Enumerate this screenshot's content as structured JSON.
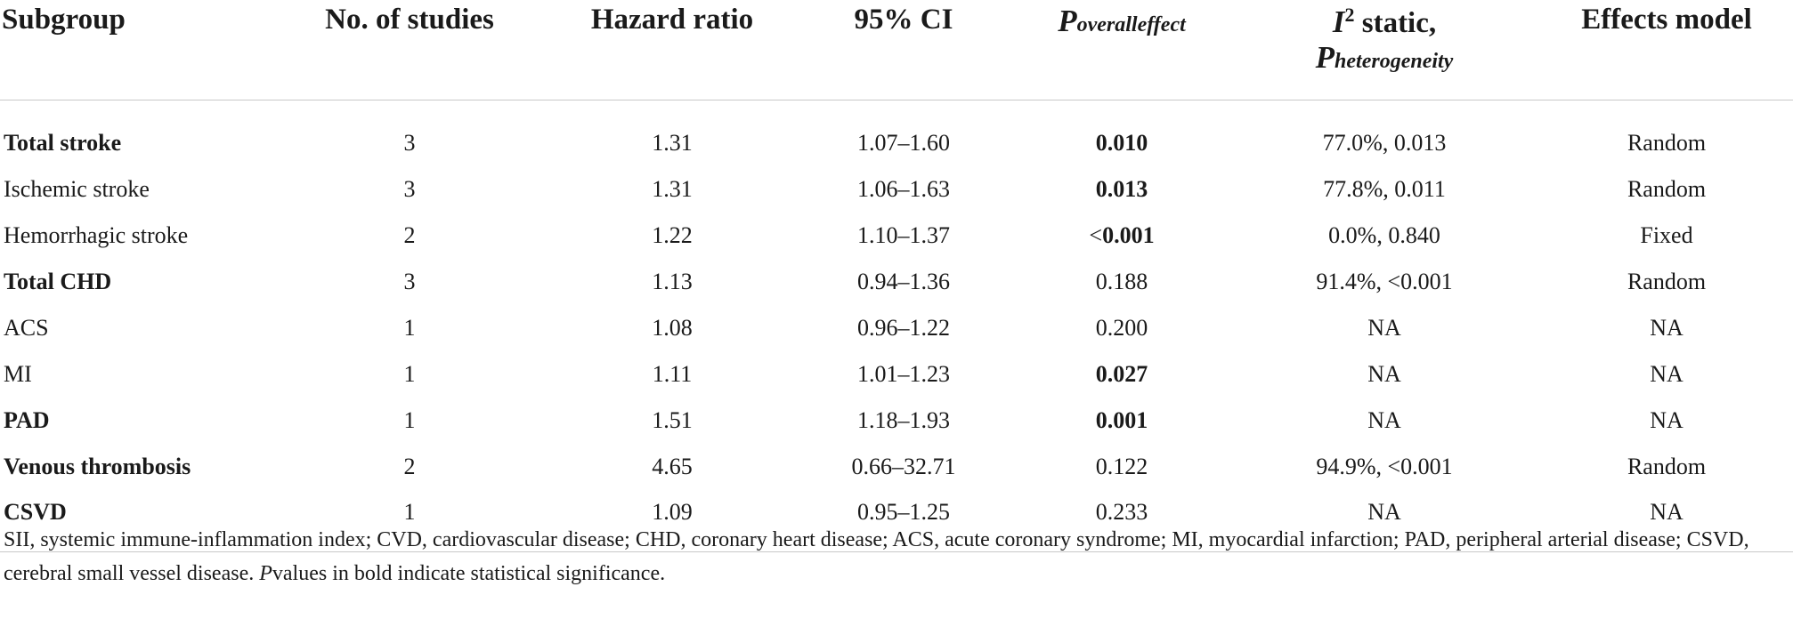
{
  "headers": {
    "subgroup": "Subgroup",
    "studies": "No. of studies",
    "hr": "Hazard ratio",
    "ci": "95% CI",
    "p_main": "P",
    "p_sub": "overalleffect",
    "i2_main": "I",
    "i2_sup": "2",
    "i2_rest": " static,",
    "phet_main": "P",
    "phet_sub": "heterogeneity",
    "model": "Effects model"
  },
  "rows": [
    {
      "subgroup": "Total stroke",
      "studies": "3",
      "hr": "1.31",
      "ci": "1.07–1.60",
      "p_prefix": "",
      "p": "0.010",
      "i2": "77.0%, 0.013",
      "model": "Random"
    },
    {
      "subgroup": "Ischemic stroke",
      "studies": "3",
      "hr": "1.31",
      "ci": "1.06–1.63",
      "p_prefix": "",
      "p": "0.013",
      "i2": "77.8%, 0.011",
      "model": "Random"
    },
    {
      "subgroup": "Hemorrhagic stroke",
      "studies": "2",
      "hr": "1.22",
      "ci": "1.10–1.37",
      "p_prefix": "<",
      "p": "0.001",
      "i2": "0.0%, 0.840",
      "model": "Fixed"
    },
    {
      "subgroup": "Total CHD",
      "studies": "3",
      "hr": "1.13",
      "ci": "0.94–1.36",
      "p_prefix": "",
      "p": "0.188",
      "i2": "91.4%, <0.001",
      "model": "Random"
    },
    {
      "subgroup": "ACS",
      "studies": "1",
      "hr": "1.08",
      "ci": "0.96–1.22",
      "p_prefix": "",
      "p": "0.200",
      "i2": "NA",
      "model": "NA"
    },
    {
      "subgroup": "MI",
      "studies": "1",
      "hr": "1.11",
      "ci": "1.01–1.23",
      "p_prefix": "",
      "p": "0.027",
      "i2": "NA",
      "model": "NA"
    },
    {
      "subgroup": "PAD",
      "studies": "1",
      "hr": "1.51",
      "ci": "1.18–1.93",
      "p_prefix": "",
      "p": "0.001",
      "i2": "NA",
      "model": "NA"
    },
    {
      "subgroup": "Venous thrombosis",
      "studies": "2",
      "hr": "4.65",
      "ci": "0.66–32.71",
      "p_prefix": "",
      "p": "0.122",
      "i2": "94.9%, <0.001",
      "model": "Random"
    },
    {
      "subgroup": "CSVD",
      "studies": "1",
      "hr": "1.09",
      "ci": "0.95–1.25",
      "p_prefix": "",
      "p": "0.233",
      "i2": "NA",
      "model": "NA"
    }
  ],
  "footnote": {
    "text": "SII, systemic immune-inflammation index; CVD, cardiovascular disease; CHD, coronary heart disease; ACS, acute coronary syndrome; MI, myocardial infarction; PAD, peripheral arterial disease; CSVD, cerebral small vessel disease. ",
    "p_letter": "P",
    "rest": "values in bold indicate statistical significance."
  }
}
